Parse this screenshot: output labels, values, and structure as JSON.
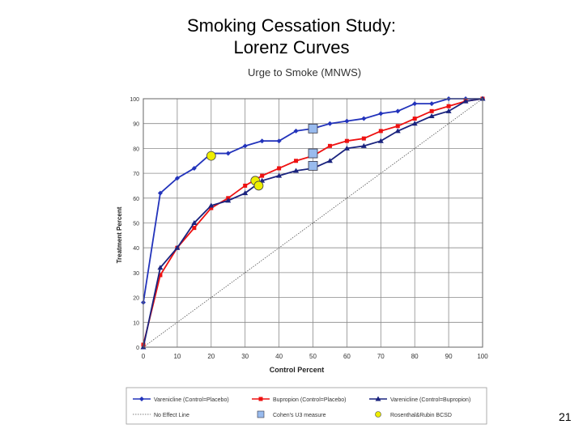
{
  "slide": {
    "title_line1": "Smoking Cessation Study:",
    "title_line2": "Lorenz Curves",
    "page_number": "21"
  },
  "chart_data": {
    "type": "line",
    "title": "Urge to Smoke (MNWS)",
    "xlabel": "Control Percent",
    "ylabel": "Treatment Percent",
    "xlim": [
      0,
      100
    ],
    "ylim": [
      0,
      100
    ],
    "xticks": [
      0,
      10,
      20,
      30,
      40,
      50,
      60,
      70,
      80,
      90,
      100
    ],
    "yticks": [
      0,
      10,
      20,
      30,
      40,
      50,
      60,
      70,
      80,
      90,
      100
    ],
    "grid": true,
    "legend_position": "bottom",
    "series": [
      {
        "name": "Varenicline (Control=Placebo)",
        "color": "#2233bb",
        "marker": "diamond",
        "x": [
          0,
          5,
          10,
          15,
          20,
          25,
          30,
          35,
          40,
          45,
          50,
          55,
          60,
          65,
          70,
          75,
          80,
          85,
          90,
          95,
          100
        ],
        "y": [
          18,
          62,
          68,
          72,
          78,
          78,
          81,
          83,
          83,
          87,
          88,
          90,
          91,
          92,
          94,
          95,
          98,
          98,
          100,
          100,
          100
        ]
      },
      {
        "name": "Bupropion (Control=Placebo)",
        "color": "#ee1111",
        "marker": "square",
        "x": [
          0,
          5,
          10,
          15,
          20,
          25,
          30,
          35,
          40,
          45,
          50,
          55,
          60,
          65,
          70,
          75,
          80,
          85,
          90,
          95,
          100
        ],
        "y": [
          1,
          29,
          40,
          48,
          56,
          60,
          65,
          69,
          72,
          75,
          77,
          81,
          83,
          84,
          87,
          89,
          92,
          95,
          97,
          99,
          100
        ]
      },
      {
        "name": "Varenicline (Control=Bupropion)",
        "color": "#1a237e",
        "marker": "triangle",
        "x": [
          0,
          5,
          10,
          15,
          20,
          25,
          30,
          35,
          40,
          45,
          50,
          55,
          60,
          65,
          70,
          75,
          80,
          85,
          90,
          95,
          100
        ],
        "y": [
          0,
          32,
          40,
          50,
          57,
          59,
          62,
          67,
          69,
          71,
          72,
          75,
          80,
          81,
          83,
          87,
          90,
          93,
          95,
          99,
          100
        ]
      }
    ],
    "reference_line": {
      "name": "No Effect Line",
      "color": "#555555",
      "x": [
        0,
        100
      ],
      "y": [
        0,
        100
      ]
    },
    "cohens_u3_markers": {
      "name": "Cohen's U3 measure",
      "color": "#99bbee",
      "points": [
        {
          "x": 50,
          "y": 88
        },
        {
          "x": 50,
          "y": 78
        },
        {
          "x": 50,
          "y": 73
        }
      ]
    },
    "bcsd_markers": {
      "name": "Rosenthal&Rubin BCSD",
      "color": "#eeee00",
      "points": [
        {
          "x": 20,
          "y": 77
        },
        {
          "x": 33,
          "y": 67
        },
        {
          "x": 34,
          "y": 65
        }
      ]
    }
  }
}
